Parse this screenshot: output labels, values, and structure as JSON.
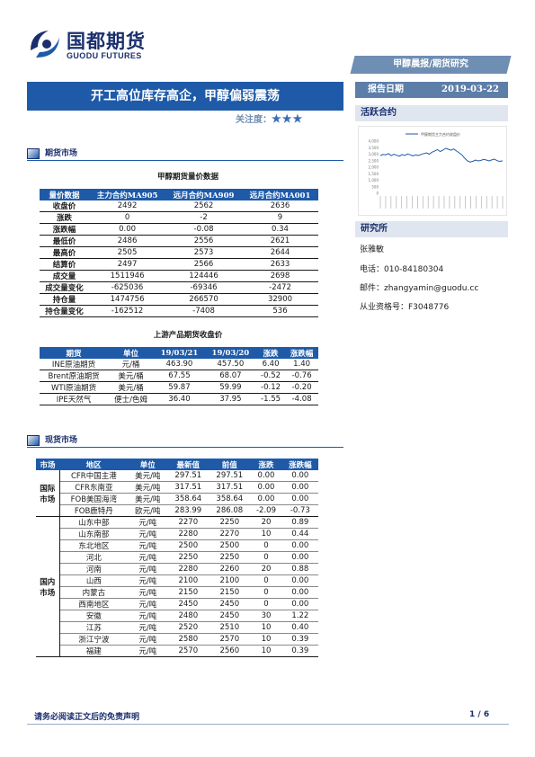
{
  "header": {
    "logo_cn": "国都期货",
    "logo_en": "GUODU FUTURES",
    "banner": "甲醇晨报/期货研究",
    "title": "开工高位库存高企，甲醇偏弱震荡",
    "attention_label": "关注度：",
    "attention_stars": "★★★",
    "date_label": "报告日期",
    "date_value": "2019-03-22"
  },
  "sidebar": {
    "active_contract": "活跃合约",
    "research": "研究所",
    "analyst": "张雅敏",
    "phone": "电话：010-84180304",
    "email": "邮件：zhangyamin@guodu.cc",
    "license": "从业资格号：F3048776"
  },
  "section_futures": "期货市场",
  "section_spot": "现货市场",
  "table1": {
    "title": "甲醇期货量价数据",
    "headers": [
      "量价数据",
      "主力合约MA905",
      "远月合约MA909",
      "远月合约MA001"
    ],
    "rows": [
      [
        "收盘价",
        "2492",
        "2562",
        "2636"
      ],
      [
        "涨跌",
        "0",
        "-2",
        "9"
      ],
      [
        "涨跌幅",
        "0.00",
        "-0.08",
        "0.34"
      ],
      [
        "最低价",
        "2486",
        "2556",
        "2621"
      ],
      [
        "最高价",
        "2505",
        "2573",
        "2644"
      ],
      [
        "结算价",
        "2497",
        "2566",
        "2633"
      ],
      [
        "成交量",
        "1511946",
        "124446",
        "2698"
      ],
      [
        "成交量变化",
        "-625036",
        "-69346",
        "-2472"
      ],
      [
        "持仓量",
        "1474756",
        "266570",
        "32900"
      ],
      [
        "持仓量变化",
        "-162512",
        "-7408",
        "536"
      ]
    ]
  },
  "table2": {
    "title": "上游产品期货收盘价",
    "headers": [
      "期货",
      "单位",
      "19/03/21",
      "19/03/20",
      "涨跌",
      "涨跌幅"
    ],
    "rows": [
      [
        "INE原油期货",
        "元/桶",
        "463.90",
        "457.50",
        "6.40",
        "1.40"
      ],
      [
        "Brent原油期货",
        "美元/桶",
        "67.55",
        "68.07",
        "-0.52",
        "-0.76"
      ],
      [
        "WTI原油期货",
        "美元/桶",
        "59.87",
        "59.99",
        "-0.12",
        "-0.20"
      ],
      [
        "IPE天然气",
        "便士/色姆",
        "36.40",
        "37.95",
        "-1.55",
        "-4.08"
      ]
    ]
  },
  "table3": {
    "headers": [
      "市场",
      "地区",
      "单位",
      "最新值",
      "前值",
      "涨跌",
      "涨跌幅"
    ],
    "intl_label": "国际市场",
    "dom_label": "国内市场",
    "intl_rows": [
      [
        "CFR中国主港",
        "美元/吨",
        "297.51",
        "297.51",
        "0.00",
        "0.00"
      ],
      [
        "CFR东南亚",
        "美元/吨",
        "317.51",
        "317.51",
        "0.00",
        "0.00"
      ],
      [
        "FOB美国海湾",
        "美元/吨",
        "358.64",
        "358.64",
        "0.00",
        "0.00"
      ],
      [
        "FOB鹿特丹",
        "欧元/吨",
        "283.99",
        "286.08",
        "-2.09",
        "-0.73"
      ]
    ],
    "dom_rows": [
      [
        "山东中部",
        "元/吨",
        "2270",
        "2250",
        "20",
        "0.89"
      ],
      [
        "山东南部",
        "元/吨",
        "2280",
        "2270",
        "10",
        "0.44"
      ],
      [
        "东北地区",
        "元/吨",
        "2500",
        "2500",
        "0",
        "0.00"
      ],
      [
        "河北",
        "元/吨",
        "2250",
        "2250",
        "0",
        "0.00"
      ],
      [
        "河南",
        "元/吨",
        "2280",
        "2260",
        "20",
        "0.88"
      ],
      [
        "山西",
        "元/吨",
        "2100",
        "2100",
        "0",
        "0.00"
      ],
      [
        "内蒙古",
        "元/吨",
        "2150",
        "2150",
        "0",
        "0.00"
      ],
      [
        "西南地区",
        "元/吨",
        "2450",
        "2450",
        "0",
        "0.00"
      ],
      [
        "安徽",
        "元/吨",
        "2480",
        "2450",
        "30",
        "1.22"
      ],
      [
        "江苏",
        "元/吨",
        "2520",
        "2510",
        "10",
        "0.40"
      ],
      [
        "浙江宁波",
        "元/吨",
        "2580",
        "2570",
        "10",
        "0.39"
      ],
      [
        "福建",
        "元/吨",
        "2570",
        "2560",
        "10",
        "0.39"
      ]
    ]
  },
  "mini_chart": {
    "legend": "甲醇期货主力合约收盘价",
    "y_ticks": [
      "4,000",
      "3,500",
      "3,000",
      "2,500",
      "2,000",
      "1,500",
      "1,000",
      "500",
      "0"
    ],
    "series": [
      2900,
      2980,
      2950,
      3050,
      2880,
      3000,
      2920,
      2850,
      2980,
      2900,
      3020,
      2950,
      2870,
      2960,
      2900,
      2980,
      3050,
      3100,
      3000,
      3150,
      3250,
      3350,
      3200,
      3300,
      3450,
      3380,
      3300,
      3400,
      3250,
      3100,
      2950,
      2700,
      2500,
      2400,
      2450,
      2550,
      2480,
      2520,
      2600,
      2550,
      2480,
      2560,
      2620,
      2500,
      2450,
      2492
    ]
  },
  "footer": {
    "disclaimer": "请务必阅读正文后的免责声明",
    "page": "1 / 6"
  }
}
